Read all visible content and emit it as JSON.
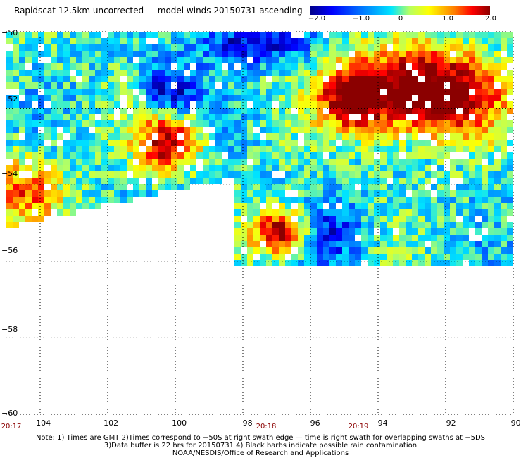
{
  "title": "Rapidscat 12.5km uncorrected — model winds 20150731 ascending",
  "colorbar": {
    "labels": [
      "−2.0",
      "−1.0",
      "0",
      "1.0",
      "2.0"
    ],
    "min": -2.0,
    "max": 2.0
  },
  "colors": {
    "low": "#00008b",
    "mid": "#00e5ff",
    "high": "#8b0000"
  },
  "axes": {
    "x_ticks": [
      "−104",
      "−102",
      "−100",
      "−98",
      "−96",
      "−94",
      "−92",
      "−90"
    ],
    "y_ticks": [
      "−50",
      "−52",
      "−54",
      "−56",
      "−58",
      "−60"
    ],
    "x_range": [
      -105,
      -90
    ],
    "y_range": [
      -60,
      -50
    ]
  },
  "times": [
    {
      "label": "20:17",
      "lon": -105
    },
    {
      "label": "20:18",
      "lon": -97.3
    },
    {
      "label": "20:19",
      "lon": -94.6
    }
  ],
  "notes": [
    "Note: 1) Times are GMT 2)Times correspond to −50S at right swath edge — time is right swath for overlapping swaths at −5DS",
    "3)Data buffer is 22 hrs for 20150731 4) Black barbs indicate possible rain contamination",
    "NOAA/NESDIS/Office of Research and Applications"
  ]
}
